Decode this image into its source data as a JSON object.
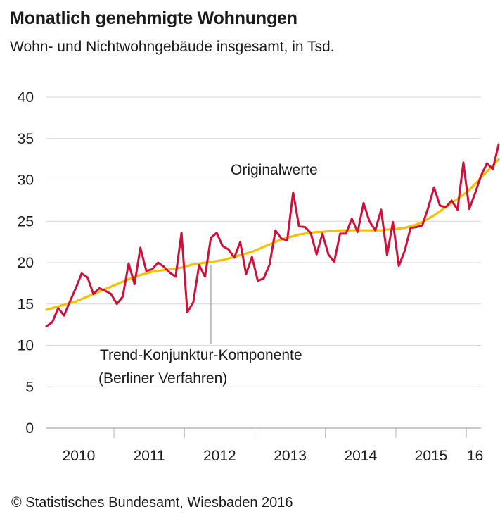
{
  "chart_data": {
    "type": "line",
    "title": "Monatlich genehmigte Wohnungen",
    "subtitle": "Wohn- und Nichtwohngebäude insgesamt, in Tsd.",
    "source": "© Statistisches Bundesamt, Wiesbaden 2016",
    "ylim": [
      0,
      40
    ],
    "y_ticks": [
      0,
      5,
      10,
      15,
      20,
      25,
      30,
      35,
      40
    ],
    "x_tick_labels": [
      "2010",
      "2011",
      "2012",
      "2013",
      "2014",
      "2015",
      "16"
    ],
    "grid": true,
    "x_start": "2010-01",
    "x_end": "2016-03",
    "annotations": {
      "original": "Originalwerte",
      "trend_line1": "Trend-Konjunktur-Komponente",
      "trend_line2": "(Berliner Verfahren)"
    },
    "series": [
      {
        "name": "Originalwerte",
        "color": "#d0103a",
        "values": [
          12.3,
          12.8,
          14.5,
          13.6,
          15.3,
          16.9,
          18.7,
          18.2,
          16.2,
          16.9,
          16.6,
          16.2,
          15.0,
          15.9,
          19.9,
          17.4,
          21.8,
          19.0,
          19.2,
          20.0,
          19.5,
          18.8,
          18.3,
          23.6,
          14.0,
          15.2,
          19.7,
          18.3,
          23.0,
          23.6,
          22.0,
          21.6,
          20.6,
          22.5,
          18.6,
          20.7,
          17.8,
          18.1,
          19.8,
          23.9,
          22.9,
          22.7,
          28.5,
          24.4,
          24.3,
          23.6,
          21.0,
          23.5,
          21.0,
          20.1,
          23.5,
          23.5,
          25.3,
          23.7,
          27.2,
          25.0,
          23.9,
          26.4,
          20.9,
          24.9,
          19.6,
          21.4,
          24.2,
          24.3,
          24.5,
          26.6,
          29.1,
          26.9,
          26.7,
          27.5,
          26.4,
          32.1,
          26.5,
          28.4,
          30.5,
          32.0,
          31.3,
          34.3
        ]
      },
      {
        "name": "Trend-Konjunktur-Komponente",
        "color": "#f5c000",
        "values": [
          14.3,
          14.5,
          14.7,
          14.9,
          15.1,
          15.3,
          15.6,
          15.9,
          16.2,
          16.5,
          16.8,
          17.1,
          17.4,
          17.7,
          18.0,
          18.3,
          18.5,
          18.7,
          18.9,
          19.0,
          19.1,
          19.2,
          19.3,
          19.4,
          19.6,
          19.8,
          19.9,
          20.0,
          20.1,
          20.2,
          20.3,
          20.5,
          20.7,
          20.9,
          21.1,
          21.3,
          21.6,
          21.9,
          22.2,
          22.5,
          22.8,
          23.0,
          23.2,
          23.4,
          23.5,
          23.6,
          23.7,
          23.7,
          23.8,
          23.8,
          23.9,
          23.9,
          23.9,
          23.9,
          23.9,
          23.9,
          23.9,
          23.9,
          24.0,
          24.0,
          24.1,
          24.2,
          24.4,
          24.6,
          24.9,
          25.3,
          25.7,
          26.2,
          26.7,
          27.2,
          27.7,
          28.2,
          28.8,
          29.5,
          30.3,
          31.0,
          31.7,
          32.5
        ]
      }
    ]
  }
}
